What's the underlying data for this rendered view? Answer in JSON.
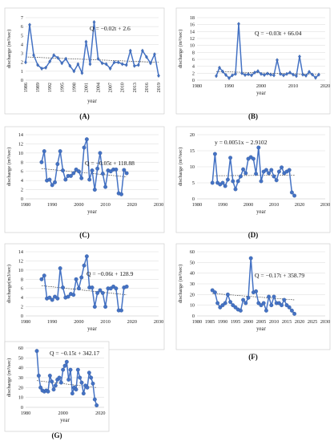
{
  "chart_data": [
    {
      "panel": "(A)",
      "type": "line",
      "xlabel": "year",
      "ylabel": "discharge (m³/sec)",
      "equation": "Q = −0.02t + 2.6",
      "x_ticks": [
        "1986",
        "1989",
        "1992",
        "1995",
        "1998",
        "2001",
        "2004",
        "2007",
        "2010",
        "2013",
        "2016",
        "2019"
      ],
      "y_ticks": [
        "0",
        "1",
        "2",
        "3",
        "4",
        "5",
        "6",
        "7"
      ],
      "xlim": [
        1986,
        2019
      ],
      "ylim": [
        0,
        7
      ],
      "x": [
        1986,
        1987,
        1988,
        1989,
        1990,
        1991,
        1992,
        1993,
        1994,
        1995,
        1996,
        1997,
        1998,
        1999,
        2000,
        2001,
        2002,
        2003,
        2004,
        2005,
        2006,
        2007,
        2008,
        2009,
        2010,
        2011,
        2012,
        2013,
        2014,
        2015,
        2016,
        2017,
        2018,
        2019
      ],
      "y": [
        2.0,
        6.2,
        2.8,
        1.7,
        1.3,
        1.4,
        2.1,
        2.8,
        2.5,
        1.9,
        2.4,
        1.6,
        1.0,
        1.8,
        0.8,
        4.3,
        1.8,
        6.5,
        2.4,
        1.9,
        1.8,
        1.3,
        2.0,
        2.0,
        1.8,
        1.7,
        3.3,
        1.6,
        1.7,
        3.3,
        2.6,
        1.9,
        2.9,
        0.5
      ],
      "trend": [
        2.6,
        2.0
      ]
    },
    {
      "panel": "(B)",
      "type": "line",
      "xlabel": "year",
      "ylabel": "discharge (m³/sec)",
      "equation": "Q = −0.03t + 66.04",
      "x_ticks": [
        "1980",
        "1990",
        "2000",
        "2010",
        "2020"
      ],
      "y_ticks": [
        "0",
        "2",
        "4",
        "6",
        "8",
        "10",
        "12",
        "14",
        "16",
        "18"
      ],
      "xlim": [
        1980,
        2020
      ],
      "ylim": [
        0,
        18
      ],
      "x": [
        1986,
        1987,
        1988,
        1989,
        1990,
        1991,
        1992,
        1993,
        1994,
        1995,
        1996,
        1997,
        1998,
        1999,
        2000,
        2001,
        2002,
        2003,
        2004,
        2005,
        2006,
        2007,
        2008,
        2009,
        2010,
        2011,
        2012,
        2013,
        2014,
        2015,
        2016,
        2017,
        2018
      ],
      "y": [
        1.2,
        3.6,
        2.5,
        1.5,
        0.6,
        1.4,
        1.8,
        16.2,
        2.0,
        1.5,
        1.7,
        1.4,
        2.2,
        2.6,
        1.8,
        1.5,
        1.9,
        1.6,
        1.4,
        5.8,
        1.8,
        1.4,
        1.8,
        2.2,
        1.6,
        1.2,
        6.8,
        1.6,
        1.3,
        2.4,
        1.6,
        0.7,
        1.6
      ],
      "trend": [
        2.5,
        1.6
      ]
    },
    {
      "panel": "(C)",
      "type": "scatter-line",
      "xlabel": "year",
      "ylabel": "discharge (m³/sec)",
      "equation": "Q = −0.05t + 118.88",
      "x_ticks": [
        "1980",
        "1990",
        "2000",
        "2010",
        "2020",
        "2030"
      ],
      "y_ticks": [
        "0",
        "2",
        "4",
        "6",
        "8",
        "10",
        "12",
        "14"
      ],
      "xlim": [
        1980,
        2030
      ],
      "ylim": [
        0,
        14
      ],
      "x": [
        1986,
        1987,
        1988,
        1989,
        1990,
        1991,
        1992,
        1993,
        1994,
        1995,
        1996,
        1997,
        1998,
        1999,
        2000,
        2001,
        2002,
        2003,
        2004,
        2005,
        2006,
        2007,
        2008,
        2009,
        2010,
        2011,
        2012,
        2013,
        2014,
        2015,
        2016,
        2017,
        2018
      ],
      "y": [
        8.0,
        10.4,
        4.0,
        4.2,
        3.0,
        3.6,
        7.6,
        10.4,
        6.2,
        4.2,
        5.0,
        5.0,
        5.6,
        6.4,
        6.0,
        4.5,
        11.2,
        13.0,
        4.2,
        6.2,
        2.0,
        6.6,
        10.0,
        5.5,
        2.6,
        6.2,
        6.0,
        6.4,
        6.4,
        1.2,
        1.0,
        6.3,
        5.6
      ],
      "trend": [
        6.6,
        4.8
      ]
    },
    {
      "panel": "(D)",
      "type": "scatter-line",
      "xlabel": "year",
      "ylabel": "discharge (m³/sec)",
      "equation": "y = 0.0051x − 2.9102",
      "x_ticks": [
        "1980",
        "1990",
        "2000",
        "2010",
        "2020",
        "2030"
      ],
      "y_ticks": [
        "0",
        "5",
        "10",
        "15",
        "20"
      ],
      "xlim": [
        1980,
        2030
      ],
      "ylim": [
        0,
        20
      ],
      "x": [
        1986,
        1987,
        1988,
        1989,
        1990,
        1991,
        1992,
        1993,
        1994,
        1995,
        1996,
        1997,
        1998,
        1999,
        2000,
        2001,
        2002,
        2003,
        2004,
        2005,
        2006,
        2007,
        2008,
        2009,
        2010,
        2011,
        2012,
        2013,
        2014,
        2015,
        2016,
        2017,
        2018
      ],
      "y": [
        5.0,
        14.0,
        5.0,
        4.5,
        5.0,
        4.0,
        6.0,
        12.8,
        5.5,
        3.0,
        5.5,
        7.0,
        9.2,
        8.0,
        12.5,
        13.0,
        12.5,
        7.8,
        16.0,
        5.5,
        8.5,
        9.0,
        8.0,
        9.0,
        7.0,
        5.8,
        8.5,
        9.8,
        8.0,
        8.5,
        9.0,
        2.0,
        1.0
      ],
      "trend": [
        7.2,
        7.4
      ]
    },
    {
      "panel": "(E)",
      "type": "scatter-line",
      "xlabel": "year",
      "ylabel": "discharge(m3/sec)",
      "equation": "Q = −0.06t + 128.9",
      "x_ticks": [
        "1980",
        "1990",
        "2000",
        "2010",
        "2020",
        "2030"
      ],
      "y_ticks": [
        "0",
        "2",
        "4",
        "6",
        "8",
        "10",
        "12",
        "14"
      ],
      "xlim": [
        1980,
        2030
      ],
      "ylim": [
        0,
        14
      ],
      "x": [
        1986,
        1987,
        1988,
        1989,
        1990,
        1991,
        1992,
        1993,
        1994,
        1995,
        1996,
        1997,
        1998,
        1999,
        2000,
        2001,
        2002,
        2003,
        2004,
        2005,
        2006,
        2007,
        2008,
        2009,
        2010,
        2011,
        2012,
        2013,
        2014,
        2015,
        2016,
        2017,
        2018
      ],
      "y": [
        8.0,
        8.8,
        3.8,
        4.0,
        3.5,
        4.2,
        3.8,
        10.4,
        6.2,
        4.0,
        4.2,
        4.8,
        4.6,
        8.0,
        6.0,
        8.4,
        11.0,
        13.0,
        6.2,
        6.2,
        2.0,
        5.0,
        5.6,
        5.0,
        2.0,
        6.0,
        6.0,
        6.4,
        6.0,
        1.2,
        1.2,
        6.2,
        6.4
      ],
      "trend": [
        6.6,
        4.6
      ]
    },
    {
      "panel": "(F)",
      "type": "scatter-line",
      "xlabel": "year",
      "ylabel": "discharge (m³/sec)",
      "equation": "Q = −0.17t + 358.79",
      "x_ticks": [
        "1980",
        "1985",
        "1990",
        "1995",
        "2000",
        "2005",
        "2010",
        "2015",
        "2020",
        "2025",
        "2030"
      ],
      "y_ticks": [
        "0",
        "10",
        "20",
        "30",
        "40",
        "50",
        "60"
      ],
      "xlim": [
        1980,
        2030
      ],
      "ylim": [
        0,
        60
      ],
      "x": [
        1986,
        1987,
        1988,
        1989,
        1990,
        1991,
        1992,
        1993,
        1994,
        1995,
        1996,
        1997,
        1998,
        1999,
        2000,
        2001,
        2002,
        2003,
        2004,
        2005,
        2006,
        2007,
        2008,
        2009,
        2010,
        2011,
        2012,
        2013,
        2014,
        2015,
        2016,
        2017,
        2018
      ],
      "y": [
        24,
        22,
        12,
        8,
        10,
        12,
        20,
        13,
        10,
        8,
        6,
        5,
        15,
        12,
        17,
        54,
        22,
        23,
        12,
        10,
        12,
        5,
        18,
        10,
        18,
        12,
        12,
        10,
        15,
        10,
        8,
        5,
        2
      ],
      "trend": [
        21,
        15
      ]
    },
    {
      "panel": "(G)",
      "type": "scatter-line",
      "xlabel": "year",
      "ylabel": "discharge (m³/sec)",
      "equation": "Q = −0.15t + 342.17",
      "x_ticks": [
        "1980",
        "2000",
        "2020"
      ],
      "y_ticks": [
        "0",
        "10",
        "20",
        "30",
        "40",
        "50",
        "60"
      ],
      "xlim": [
        1980,
        2022
      ],
      "ylim": [
        0,
        60
      ],
      "x": [
        1986,
        1987,
        1988,
        1989,
        1990,
        1991,
        1992,
        1993,
        1994,
        1995,
        1996,
        1997,
        1998,
        1999,
        2000,
        2001,
        2002,
        2003,
        2004,
        2005,
        2006,
        2007,
        2008,
        2009,
        2010,
        2011,
        2012,
        2013,
        2014,
        2015,
        2016,
        2017,
        2018
      ],
      "y": [
        57,
        32,
        20,
        17,
        16,
        17,
        16,
        32,
        26,
        18,
        22,
        28,
        30,
        25,
        38,
        42,
        46,
        28,
        38,
        14,
        20,
        18,
        38,
        30,
        25,
        14,
        22,
        20,
        35,
        30,
        24,
        8,
        2
      ],
      "trend": [
        27,
        20
      ]
    }
  ]
}
